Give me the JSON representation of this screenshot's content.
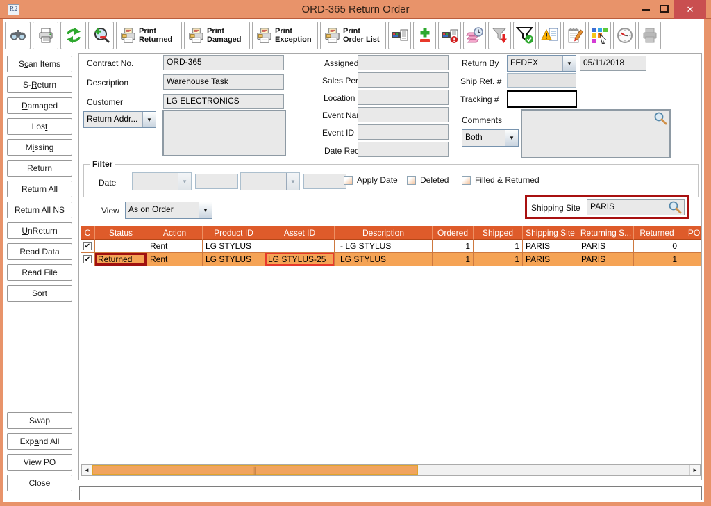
{
  "window": {
    "title": "ORD-365 Return Order",
    "app_icon_text": "R2",
    "controls": [
      "minimize-icon",
      "maximize-icon",
      "close-icon"
    ]
  },
  "colors": {
    "titlebar": "#E8936A",
    "table_header": "#DE5B2A",
    "selected_row": "#F5A355",
    "annotation_dark_red": "#A01010",
    "annotation_bright_red": "#E8392B",
    "close_button": "#C94F50"
  },
  "toolbar": {
    "left_icons": [
      "binoculars-find-icon",
      "print-icon",
      "refresh-icon",
      "zoom-adjust-icon"
    ],
    "print_buttons": [
      {
        "line1": "Print",
        "line2": "Returned"
      },
      {
        "line1": "Print",
        "line2": "Damaged"
      },
      {
        "line1": "Print",
        "line2": "Exception"
      },
      {
        "line1": "Print",
        "line2": "Order List"
      }
    ],
    "right_icons": [
      "scan-list-icon",
      "add-remove-icon",
      "scan-alert-icon",
      "notes-schedule-icon",
      "funnel-down-icon",
      "funnel-check-icon",
      "exception-report-icon",
      "edit-notes-icon",
      "legend-colors-icon",
      "clock-icon",
      "print-disabled-icon"
    ]
  },
  "sidebar": {
    "top": [
      {
        "label": "Scan Items",
        "u": 1
      },
      {
        "label": "S-Return",
        "u": 2
      },
      {
        "label": "Damaged",
        "u": 0
      },
      {
        "label": "Lost",
        "u": 3
      },
      {
        "label": "Missing",
        "u": 1
      },
      {
        "label": "Return",
        "u": 5
      },
      {
        "label": "Return All",
        "u": 9
      },
      {
        "label": "Return All NS",
        "u": -1
      },
      {
        "label": "UnReturn",
        "u": 0
      },
      {
        "label": "Read Data",
        "u": -1
      },
      {
        "label": "Read File",
        "u": -1
      },
      {
        "label": "Sort",
        "u": -1
      }
    ],
    "bottom": [
      {
        "label": "Swap",
        "u": -1
      },
      {
        "label": "Expand All",
        "u": 3
      },
      {
        "label": "View PO",
        "u": -1
      },
      {
        "label": "Close",
        "u": 2
      }
    ]
  },
  "form": {
    "contract_label": "Contract No.",
    "contract_value": "ORD-365",
    "description_label": "Description",
    "description_value": "Warehouse Task",
    "customer_label": "Customer",
    "customer_value": "LG ELECTRONICS",
    "return_addr_label": "Return Addr...",
    "return_addr_value": "",
    "assigned_to_label": "Assigned To",
    "assigned_to_value": "",
    "sales_person_label": "Sales Person",
    "sales_person_value": "",
    "location_label": "Location",
    "location_value": "",
    "event_name_label": "Event Name",
    "event_name_value": "",
    "event_id_label": "Event ID",
    "event_id_value": "",
    "date_recd_label": "Date Recd.",
    "date_recd_value": "",
    "return_by_label": "Return By",
    "return_by_value": "FEDEX",
    "return_date_value": "05/11/2018",
    "ship_ref_label": "Ship Ref. #",
    "ship_ref_value": "",
    "tracking_label": "Tracking #",
    "tracking_value": "",
    "comments_label": "Comments",
    "comments_mode_value": "Both",
    "comments_value": ""
  },
  "filter": {
    "legend": "Filter",
    "date_label": "Date",
    "checkboxes": [
      {
        "label": "Apply Date",
        "checked": false
      },
      {
        "label": "Deleted",
        "checked": false
      },
      {
        "label": "Filled & Returned",
        "checked": false
      }
    ]
  },
  "view": {
    "label": "View",
    "value": "As on Order"
  },
  "shipping_site": {
    "label": "Shipping Site",
    "value": "PARIS"
  },
  "table": {
    "columns": [
      "C",
      "Status",
      "Action",
      "Product ID",
      "Asset ID",
      "Description",
      "Ordered",
      "Shipped",
      "Shipping Site",
      "Returning S...",
      "Returned",
      "PO"
    ],
    "rows": [
      {
        "checked": true,
        "selected": false,
        "cells": [
          "",
          "Rent",
          "LG STYLUS",
          "",
          "- LG STYLUS",
          "1",
          "1",
          "PARIS",
          "PARIS",
          "0",
          ""
        ]
      },
      {
        "checked": true,
        "selected": true,
        "cells": [
          "Returned",
          "Rent",
          "LG STYLUS",
          "LG STYLUS-25",
          "LG STYLUS",
          "1",
          "1",
          "PARIS",
          "PARIS",
          "1",
          ""
        ],
        "annotations": {
          "0": "dark",
          "3": "bright"
        }
      }
    ]
  },
  "bottom": {
    "message_value": ""
  }
}
